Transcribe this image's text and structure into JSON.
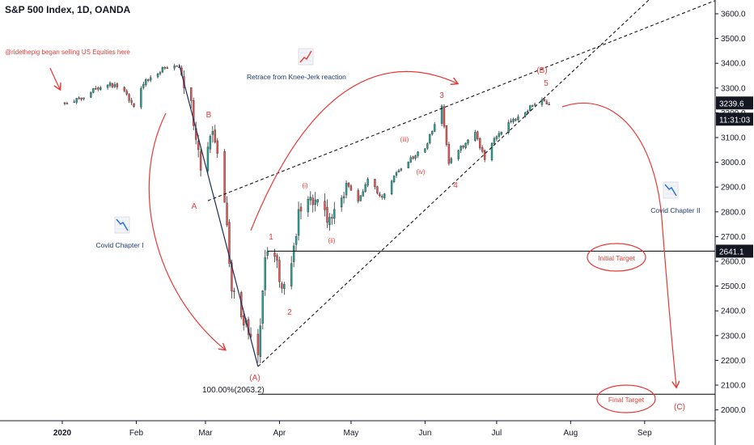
{
  "header": {
    "title": "S&P 500 Index, 1D, OANDA"
  },
  "colors": {
    "up": "#26a69a",
    "down": "#ef5350",
    "annotation_red": "#e53935",
    "annotation_navy": "#1b3a6b",
    "line_black": "#000000",
    "wave_line": "#1b2c5a"
  },
  "chart_data": {
    "type": "candlestick",
    "instrument": "S&P 500 Index",
    "interval": "1D",
    "source": "OANDA",
    "x_ticks": [
      "2020",
      "Feb",
      "Mar",
      "Apr",
      "May",
      "Jun",
      "Jul",
      "Aug",
      "Sep"
    ],
    "y_ticks": [
      2000.0,
      2100.0,
      2200.0,
      2300.0,
      2400.0,
      2500.0,
      2600.0,
      2700.0,
      2800.0,
      2900.0,
      3000.0,
      3100.0,
      3200.0,
      3300.0,
      3400.0,
      3500.0,
      3600.0
    ],
    "y_tick_labels": [
      "2000.0",
      "2100.0",
      "2200.0",
      "2300.0",
      "2400.0",
      "2500.0",
      "2600.0",
      "2700.0",
      "2800.0",
      "2900.0",
      "3000.0",
      "3100.0",
      "3200.0",
      "3300.0",
      "3400.0",
      "3500.0",
      "3600.0"
    ],
    "ylim": [
      1960,
      3660
    ],
    "price_badges": [
      {
        "label": "3239.6",
        "value": 3239.6,
        "style": "dark"
      },
      {
        "label": "11:31:03",
        "value": 3190,
        "style": "dark"
      },
      {
        "label": "2641.1",
        "value": 2641.1,
        "style": "dark"
      }
    ],
    "horizontal_levels": [
      {
        "name": "initial-target-level",
        "value": 2641.1
      },
      {
        "name": "fib-level",
        "value": 2063.2,
        "label": "100.00%(2063.2)"
      }
    ],
    "path_anchors": [
      [
        "2020-01-02",
        3240
      ],
      [
        "2020-01-08",
        3255
      ],
      [
        "2020-01-14",
        3290
      ],
      [
        "2020-01-20",
        3320
      ],
      [
        "2020-01-26",
        3295
      ],
      [
        "2020-01-31",
        3230
      ],
      [
        "2020-02-05",
        3330
      ],
      [
        "2020-02-12",
        3375
      ],
      [
        "2020-02-19",
        3390
      ],
      [
        "2020-02-24",
        3230
      ],
      [
        "2020-02-28",
        2955
      ],
      [
        "2020-03-04",
        3130
      ],
      [
        "2020-03-08",
        2960
      ],
      [
        "2020-03-12",
        2480
      ],
      [
        "2020-03-16",
        2390
      ],
      [
        "2020-03-20",
        2290
      ],
      [
        "2020-03-23",
        2200
      ],
      [
        "2020-03-26",
        2630
      ],
      [
        "2020-03-30",
        2630
      ],
      [
        "2020-04-02",
        2500
      ],
      [
        "2020-04-05",
        2520
      ],
      [
        "2020-04-09",
        2790
      ],
      [
        "2020-04-14",
        2840
      ],
      [
        "2020-04-18",
        2870
      ],
      [
        "2020-04-21",
        2740
      ],
      [
        "2020-04-26",
        2860
      ],
      [
        "2020-04-30",
        2900
      ],
      [
        "2020-05-04",
        2840
      ],
      [
        "2020-05-08",
        2940
      ],
      [
        "2020-05-14",
        2850
      ],
      [
        "2020-05-20",
        2960
      ],
      [
        "2020-05-26",
        3010
      ],
      [
        "2020-06-01",
        3060
      ],
      [
        "2020-06-08",
        3220
      ],
      [
        "2020-06-11",
        3000
      ],
      [
        "2020-06-15",
        3050
      ],
      [
        "2020-06-22",
        3120
      ],
      [
        "2020-06-26",
        3010
      ],
      [
        "2020-07-01",
        3110
      ],
      [
        "2020-07-08",
        3170
      ],
      [
        "2020-07-15",
        3220
      ],
      [
        "2020-07-20",
        3250
      ],
      [
        "2020-07-23",
        3240
      ]
    ],
    "annotations": {
      "note_selling": "@ridethepig began selling US Equities here",
      "retrace": "Retrace from Knee-Jerk reaction",
      "covid1": "Covid Chapter I",
      "covid2": "Covid Chapter II",
      "initial_target": "Initial Target",
      "final_target": "Final Target",
      "fib_label": "100.00%(2063.2)"
    },
    "wave_labels": [
      {
        "key": "B_small",
        "text": "B"
      },
      {
        "key": "A_small",
        "text": "A"
      },
      {
        "key": "A_big",
        "text": "(A)"
      },
      {
        "key": "w1",
        "text": "1"
      },
      {
        "key": "w2",
        "text": "2"
      },
      {
        "key": "wi",
        "text": "(i)"
      },
      {
        "key": "wii",
        "text": "(ii)"
      },
      {
        "key": "wiii",
        "text": "(iii)"
      },
      {
        "key": "wiv",
        "text": "(iv)"
      },
      {
        "key": "w3",
        "text": "3"
      },
      {
        "key": "w4",
        "text": "4"
      },
      {
        "key": "w5",
        "text": "5"
      },
      {
        "key": "B_big",
        "text": "(B)"
      },
      {
        "key": "C_big",
        "text": "(C)"
      }
    ]
  }
}
